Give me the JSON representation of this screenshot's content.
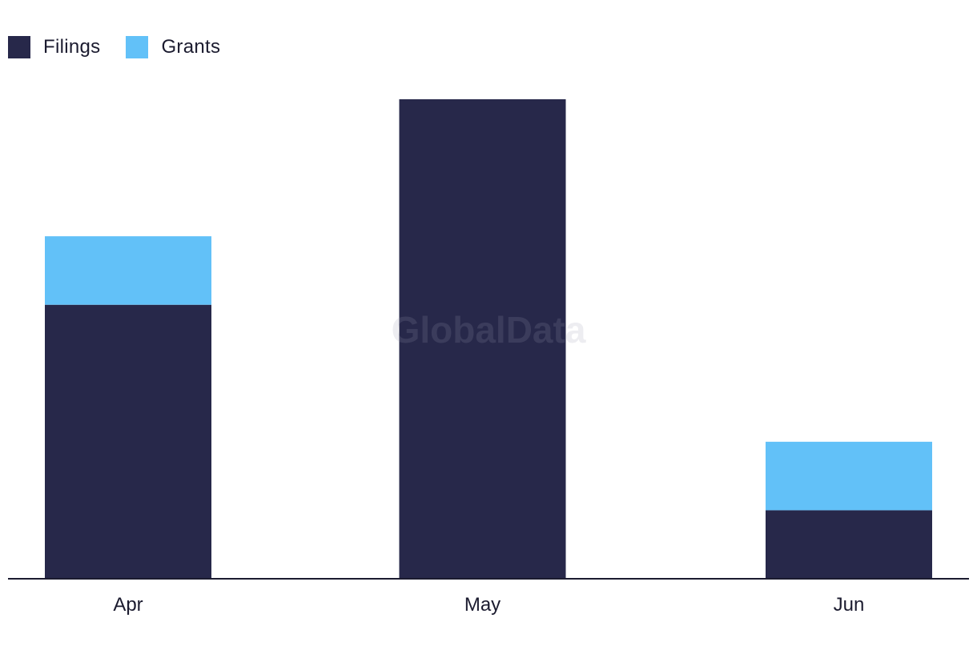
{
  "watermark": "GlobalData",
  "colors": {
    "filings": "#27284a",
    "grants": "#62c1f8",
    "axis": "#1b1b2f"
  },
  "legend": [
    {
      "name": "Filings",
      "color": "#27284a"
    },
    {
      "name": "Grants",
      "color": "#62c1f8"
    }
  ],
  "chart_data": {
    "type": "bar",
    "stacked": true,
    "categories": [
      "Apr",
      "May",
      "Jun"
    ],
    "series": [
      {
        "name": "Filings",
        "values": [
          4,
          7,
          1
        ]
      },
      {
        "name": "Grants",
        "values": [
          1,
          0,
          1
        ]
      }
    ],
    "ylim": [
      0,
      7
    ],
    "grid": false,
    "legend_position": "top-left",
    "title": "",
    "xlabel": "",
    "ylabel": ""
  }
}
